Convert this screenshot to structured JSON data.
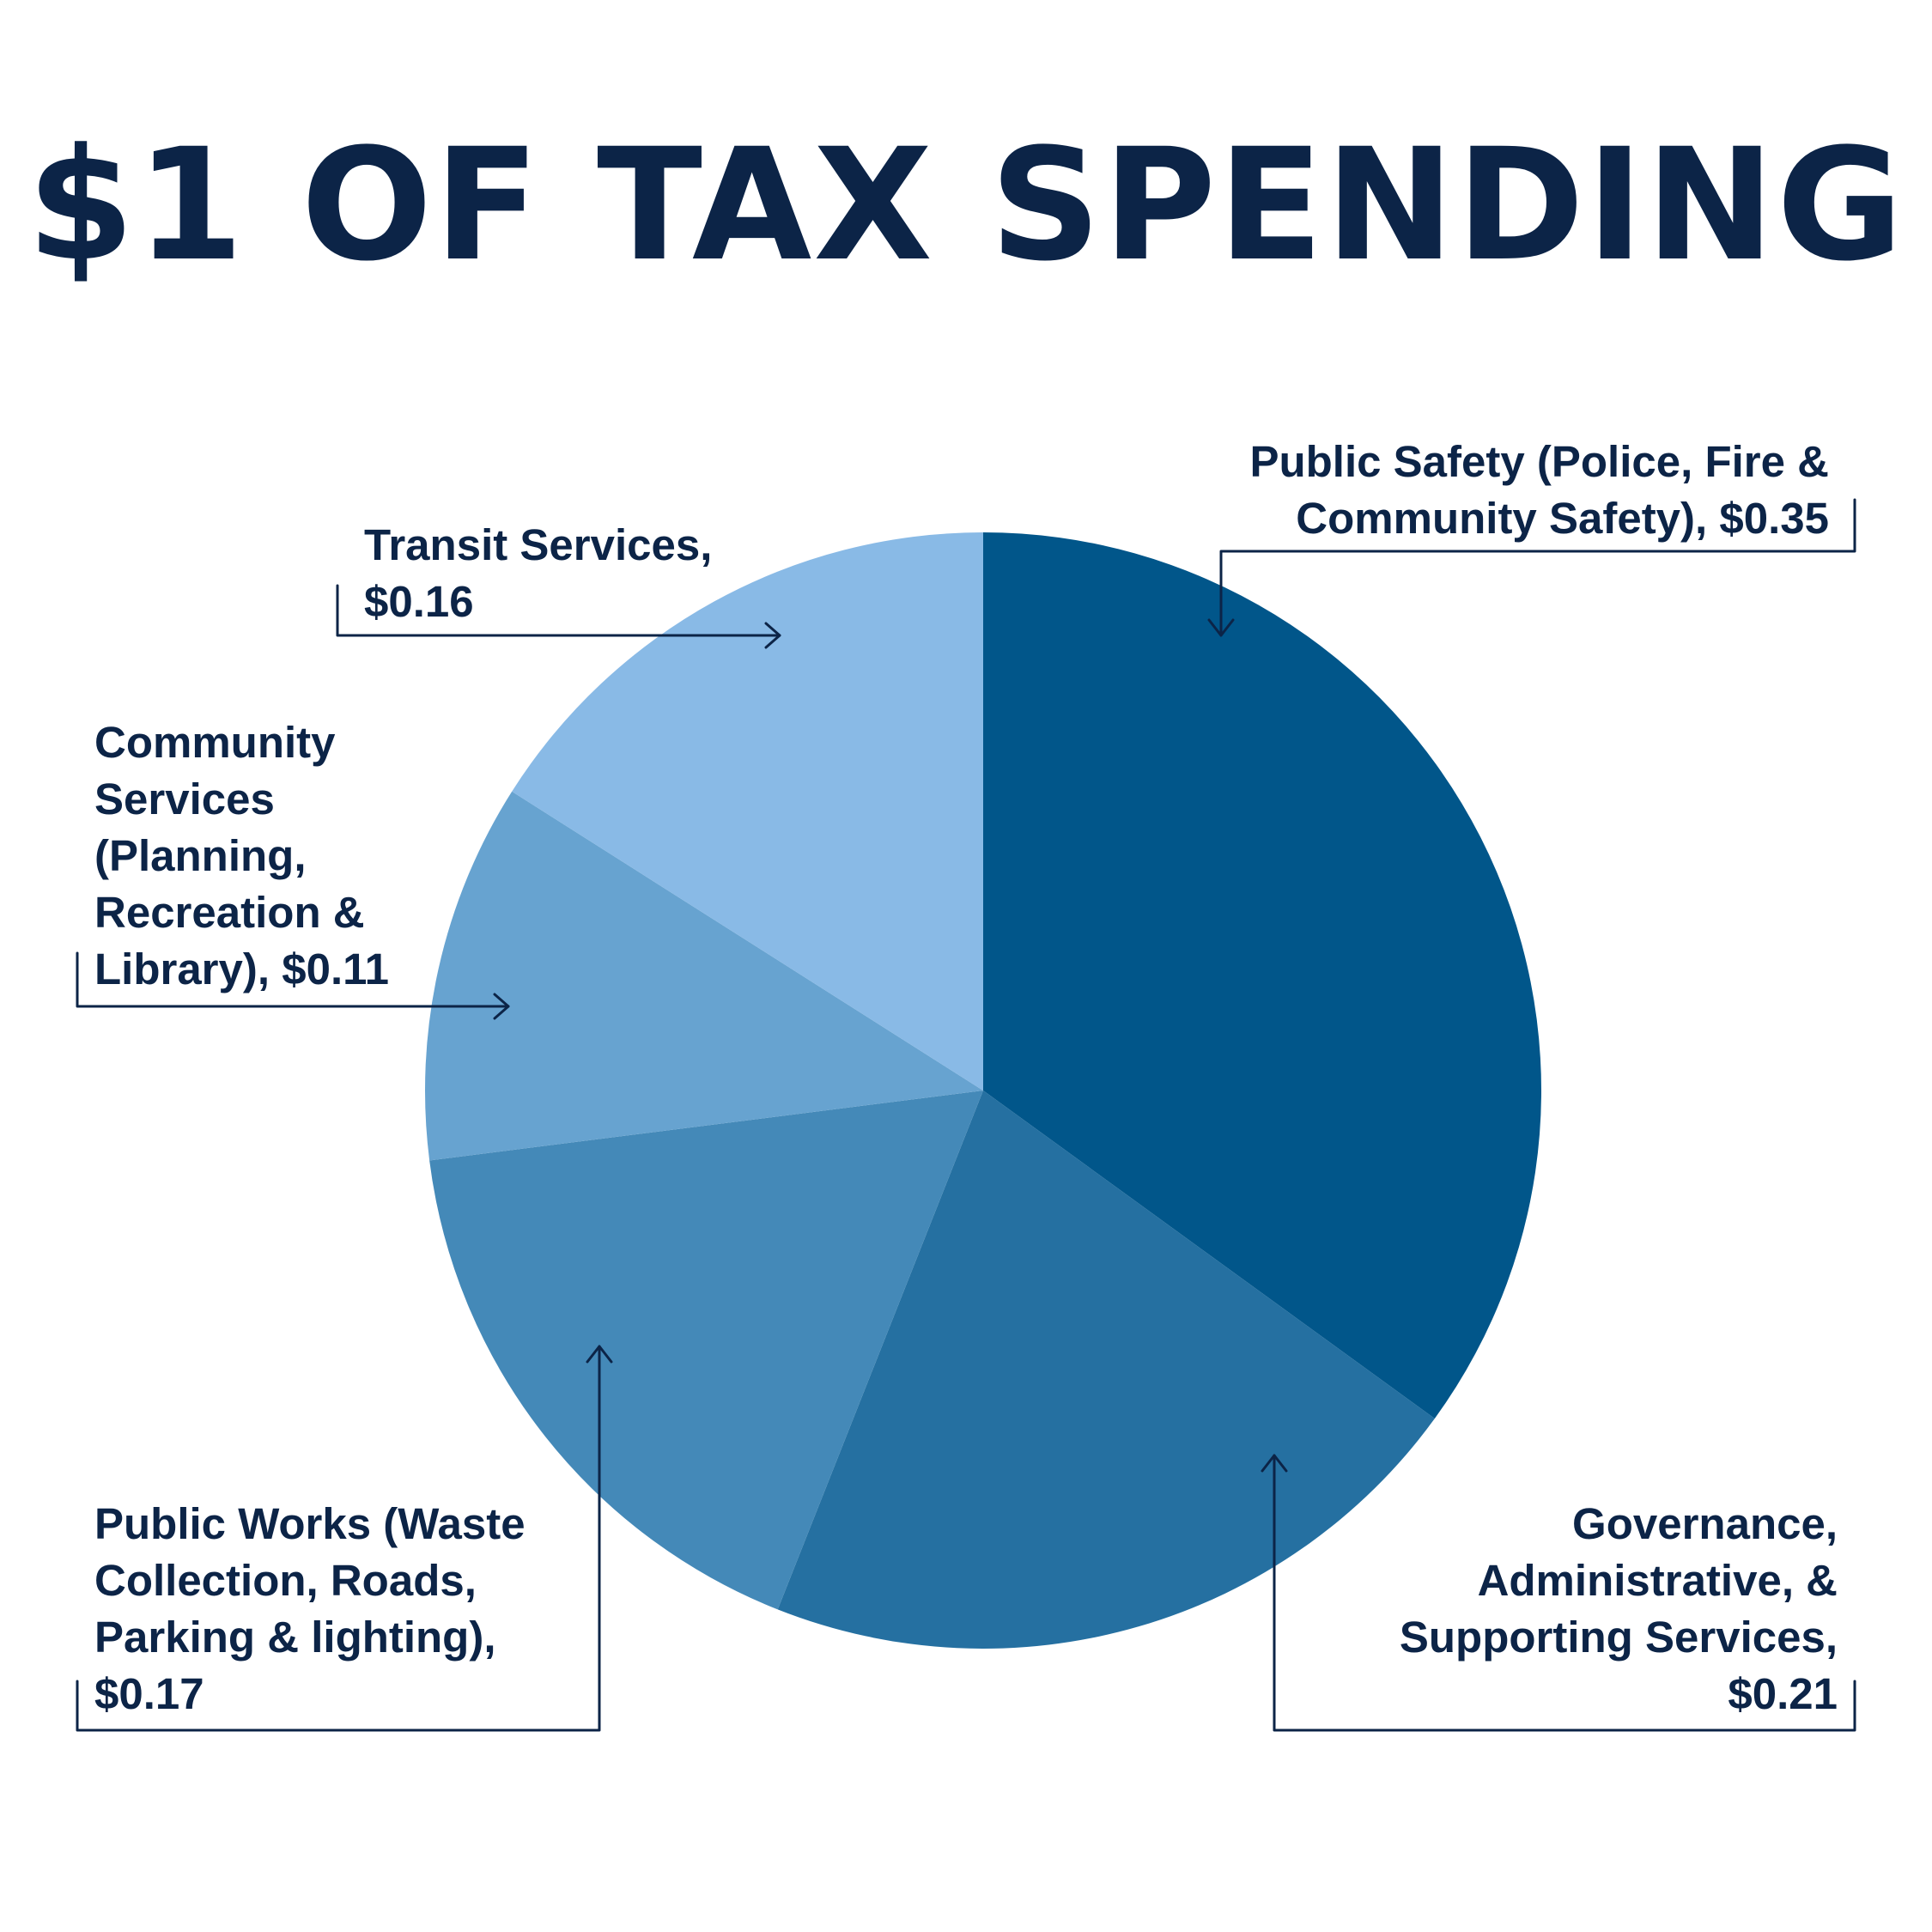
{
  "title": "$1 OF TAX SPENDING",
  "colors": {
    "text": "#0c2447",
    "public_safety": "#01568a",
    "governance": "#2570a1",
    "public_works": "#4489b8",
    "community": "#67a3d0",
    "transit": "#89bae6"
  },
  "chart_data": {
    "type": "pie",
    "title": "$1 OF TAX SPENDING",
    "slices": [
      {
        "key": "public_safety",
        "value": 0.35,
        "label_lines": [
          "Public Safety (Police, Fire &",
          "Community Safety), $0.35"
        ]
      },
      {
        "key": "governance",
        "value": 0.21,
        "label_lines": [
          "Governance,",
          "Administrative, &",
          "Supporting Services,",
          "$0.21"
        ]
      },
      {
        "key": "public_works",
        "value": 0.17,
        "label_lines": [
          "Public Works (Waste",
          "Collection, Roads,",
          "Parking & lighting),",
          "$0.17"
        ]
      },
      {
        "key": "community",
        "value": 0.11,
        "label_lines": [
          "Community",
          "Services",
          "(Planning,",
          "Recreation &",
          "Library), $0.11"
        ]
      },
      {
        "key": "transit",
        "value": 0.16,
        "label_lines": [
          "Transit Services,",
          "$0.16"
        ]
      }
    ]
  }
}
